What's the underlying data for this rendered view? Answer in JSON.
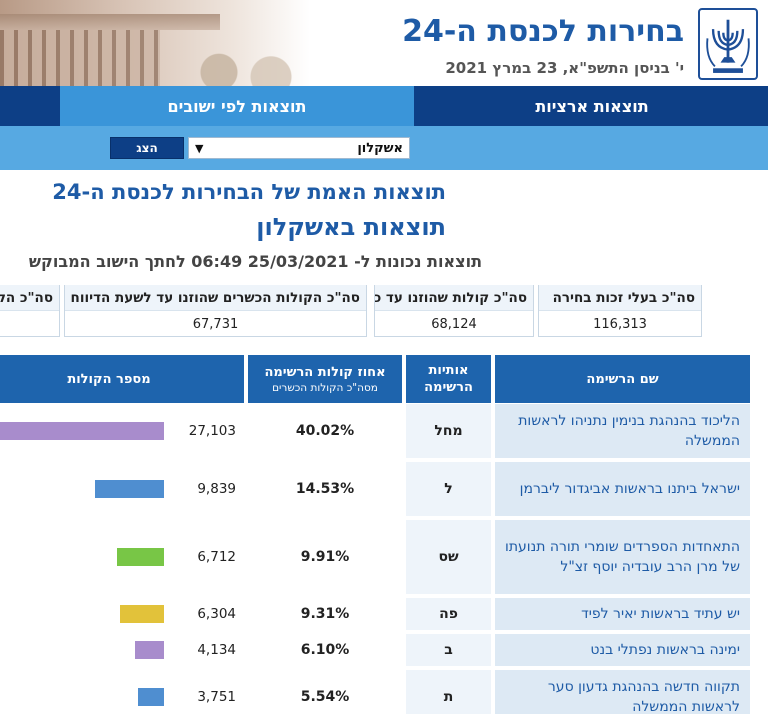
{
  "header": {
    "title": "בחירות לכנסת ה-24",
    "date": "י' בניסן התשפ\"א, 23 במרץ 2021",
    "emblem_icon": "menorah-emblem-icon"
  },
  "nav": {
    "national": "תוצאות ארציות",
    "local": "תוצאות לפי ישובים"
  },
  "filter": {
    "city": "אשקלון",
    "show_button": "הצג"
  },
  "titles": {
    "main": "תוצאות האמת של הבחירות לכנסת ה-24",
    "city": "תוצאות באשקלון",
    "updated": "תוצאות נכונות ל- 25/03/2021 06:49 לחתך הישוב המבוקש"
  },
  "stats": {
    "eligible_label": "סה\"כ בעלי זכות בחירה",
    "eligible_value": "116,313",
    "votes_label": "סה\"כ קולות שהוזנו עד כה",
    "votes_value": "68,124",
    "valid_label": "סה\"כ הקולות הכשרים שהוזנו עד לשעת הדיווח",
    "valid_value": "67,731",
    "cut_label": "סה\"כ הק"
  },
  "table": {
    "headers": {
      "name": "שם הרשימה",
      "letter_line1": "אותיות",
      "letter_line2": "הרשימה",
      "pct_main": "אחוז קולות הרשימה",
      "pct_sub": "מסה\"כ הקולות הכשרים",
      "votes": "מספר הקולות"
    },
    "rows": [
      {
        "name": "הליכוד בהנהגת בנימין נתניהו לראשות הממשלה",
        "letter": "מחל",
        "pct": "40.02%",
        "votes": "27,103",
        "votes_num": 27103,
        "color": "#a88ccc"
      },
      {
        "name": "ישראל ביתנו בראשות אביגדור ליברמן",
        "letter": "ל",
        "pct": "14.53%",
        "votes": "9,839",
        "votes_num": 9839,
        "color": "#4f8ed0"
      },
      {
        "name": "התאחדות הספרדים שומרי תורה תנועתו של מרן הרב עובדיה יוסף זצ\"ל",
        "letter": "שס",
        "pct": "9.91%",
        "votes": "6,712",
        "votes_num": 6712,
        "color": "#78c646"
      },
      {
        "name": "יש עתיד בראשות יאיר לפיד",
        "letter": "פה",
        "pct": "9.31%",
        "votes": "6,304",
        "votes_num": 6304,
        "color": "#e2c23a"
      },
      {
        "name": "ימינה בראשות נפתלי בנט",
        "letter": "ב",
        "pct": "6.10%",
        "votes": "4,134",
        "votes_num": 4134,
        "color": "#a88ccc"
      },
      {
        "name": "תקווה חדשה בהנהגת גדעון סער לראשות הממשלה",
        "letter": "ת",
        "pct": "5.54%",
        "votes": "3,751",
        "votes_num": 3751,
        "color": "#4f8ed0"
      }
    ]
  }
}
